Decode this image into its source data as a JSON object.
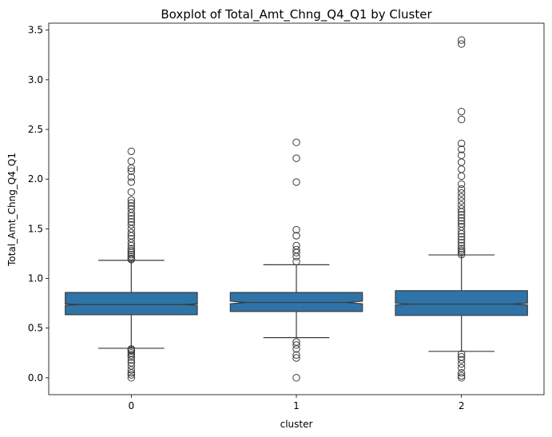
{
  "chart_data": {
    "type": "boxplot",
    "title": "Boxplot of Total_Amt_Chng_Q4_Q1 by Cluster",
    "xlabel": "cluster",
    "ylabel": "Total_Amt_Chng_Q4_Q1",
    "categories": [
      "0",
      "1",
      "2"
    ],
    "ylim": [
      -0.17,
      3.57
    ],
    "yticks": [
      "0.0",
      "0.5",
      "1.0",
      "1.5",
      "2.0",
      "2.5",
      "3.0",
      "3.5"
    ],
    "grid": false,
    "box_color": "#2f74a8",
    "line_color": "#3b3b3b",
    "boxes": [
      {
        "category": "0",
        "q1": 0.635,
        "median": 0.737,
        "q3": 0.859,
        "notch_low": 0.73,
        "notch_high": 0.744,
        "whisker_low": 0.297,
        "whisker_high": 1.182,
        "outliers": [
          0.0,
          0.03,
          0.05,
          0.08,
          0.12,
          0.15,
          0.18,
          0.21,
          0.23,
          0.25,
          0.27,
          0.28,
          0.29,
          1.19,
          1.2,
          1.22,
          1.24,
          1.26,
          1.28,
          1.3,
          1.33,
          1.36,
          1.4,
          1.43,
          1.46,
          1.5,
          1.54,
          1.57,
          1.6,
          1.63,
          1.66,
          1.7,
          1.73,
          1.76,
          1.79,
          1.87,
          1.97,
          2.02,
          2.08,
          2.11,
          2.18,
          2.28
        ]
      },
      {
        "category": "1",
        "q1": 0.667,
        "median": 0.758,
        "q3": 0.859,
        "notch_low": 0.745,
        "notch_high": 0.771,
        "whisker_low": 0.404,
        "whisker_high": 1.138,
        "outliers": [
          0.0,
          0.2,
          0.23,
          0.29,
          0.33,
          0.36,
          1.17,
          1.22,
          1.26,
          1.29,
          1.33,
          1.43,
          1.49,
          1.97,
          2.21,
          2.37
        ]
      },
      {
        "category": "2",
        "q1": 0.628,
        "median": 0.742,
        "q3": 0.876,
        "notch_low": 0.733,
        "notch_high": 0.751,
        "whisker_low": 0.266,
        "whisker_high": 1.237,
        "outliers": [
          0.0,
          0.02,
          0.05,
          0.1,
          0.14,
          0.18,
          0.21,
          0.24,
          1.24,
          1.26,
          1.28,
          1.3,
          1.33,
          1.36,
          1.39,
          1.42,
          1.45,
          1.48,
          1.52,
          1.55,
          1.58,
          1.61,
          1.64,
          1.67,
          1.7,
          1.74,
          1.78,
          1.82,
          1.86,
          1.9,
          1.95,
          2.03,
          2.1,
          2.17,
          2.24,
          2.3,
          2.36,
          2.6,
          2.68,
          3.36,
          3.4
        ]
      }
    ]
  }
}
